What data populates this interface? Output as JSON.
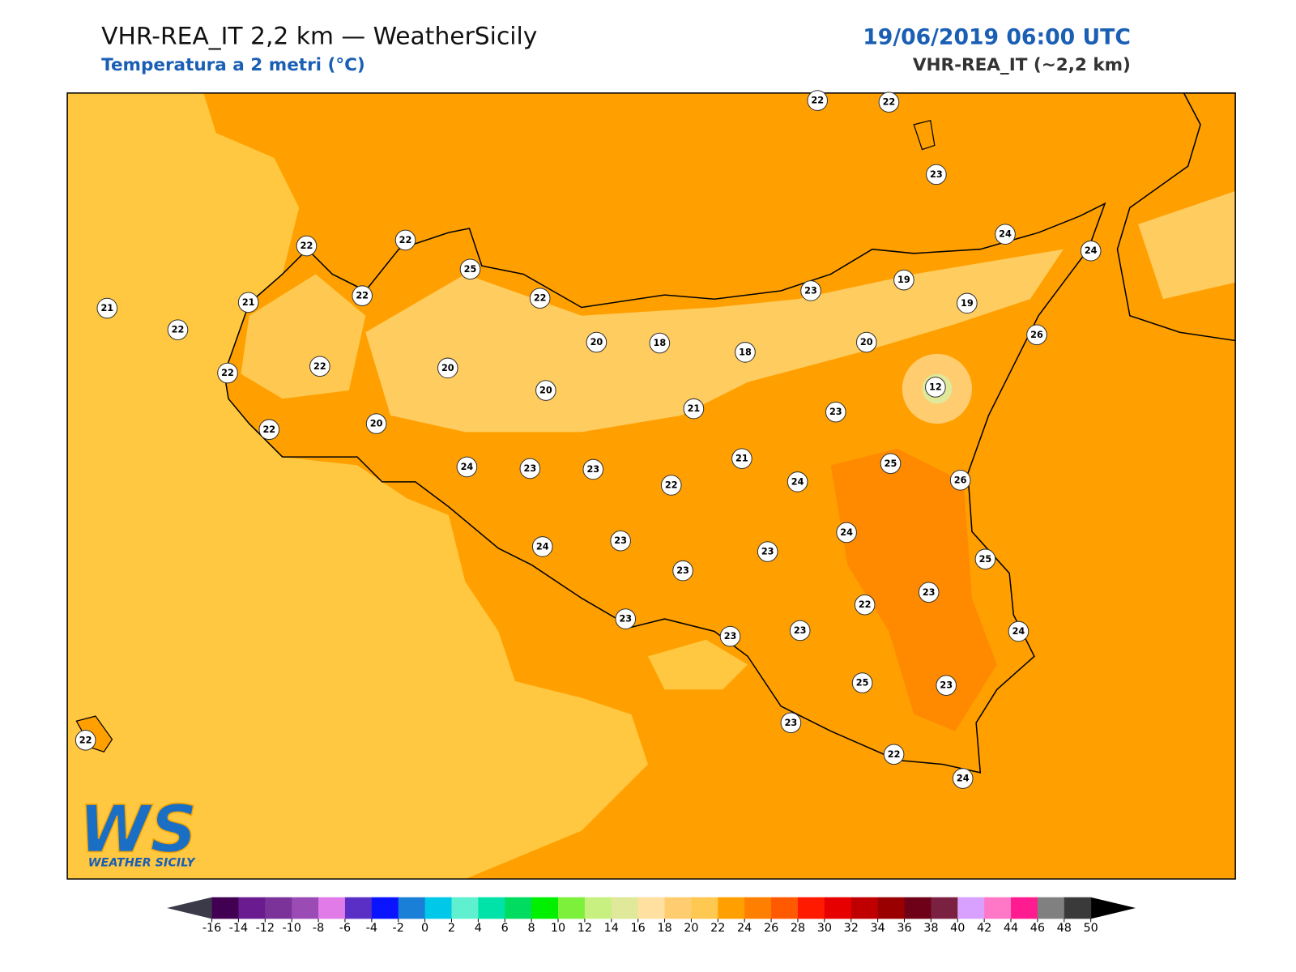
{
  "header": {
    "title": "VHR-REA_IT 2,2 km — WeatherSicily",
    "subtitle": "Temperatura a 2 metri (°C)",
    "date": "19/06/2019 06:00 UTC",
    "model": "VHR-REA_IT (~2,2 km)"
  },
  "stations": [
    22,
    22,
    23,
    22,
    22,
    25,
    24,
    24,
    21,
    21,
    22,
    22,
    23,
    19,
    19,
    22,
    20,
    18,
    18,
    20,
    26,
    22,
    22,
    20,
    20,
    12,
    21,
    23,
    22,
    20,
    21,
    25,
    24,
    23,
    23,
    22,
    24,
    26,
    24,
    23,
    24,
    23,
    23,
    25,
    23,
    22,
    23,
    23,
    23,
    24,
    25,
    23,
    23,
    22,
    22,
    24
  ],
  "colorbar": {
    "ticks": [
      -16,
      -14,
      -12,
      -10,
      -8,
      -6,
      -4,
      -2,
      0,
      2,
      4,
      6,
      8,
      10,
      12,
      14,
      16,
      18,
      20,
      22,
      24,
      26,
      28,
      30,
      32,
      34,
      36,
      38,
      40,
      42,
      44,
      46,
      48,
      50
    ],
    "colors": [
      "#410052",
      "#6a1b8f",
      "#7b3399",
      "#9b4bb5",
      "#e07be8",
      "#5a2fc5",
      "#0a14ff",
      "#1a7fd6",
      "#00c8e8",
      "#5ef0cf",
      "#00e3a8",
      "#00dc60",
      "#00f000",
      "#7df03c",
      "#c8f080",
      "#e0e89a",
      "#ffe0a0",
      "#ffcc70",
      "#ffc850",
      "#ffa000",
      "#ff8000",
      "#ff5a00",
      "#ff1a00",
      "#e60000",
      "#c00000",
      "#9a0000",
      "#6e0018",
      "#7a2040",
      "#d8a0ff",
      "#ff78c8",
      "#ff1c90",
      "#808080",
      "#3a3a3a"
    ],
    "under_color": "#3a3a48",
    "over_color": "#000000"
  },
  "logo": {
    "text": "WS",
    "tagline": "WEATHER SICILY"
  }
}
